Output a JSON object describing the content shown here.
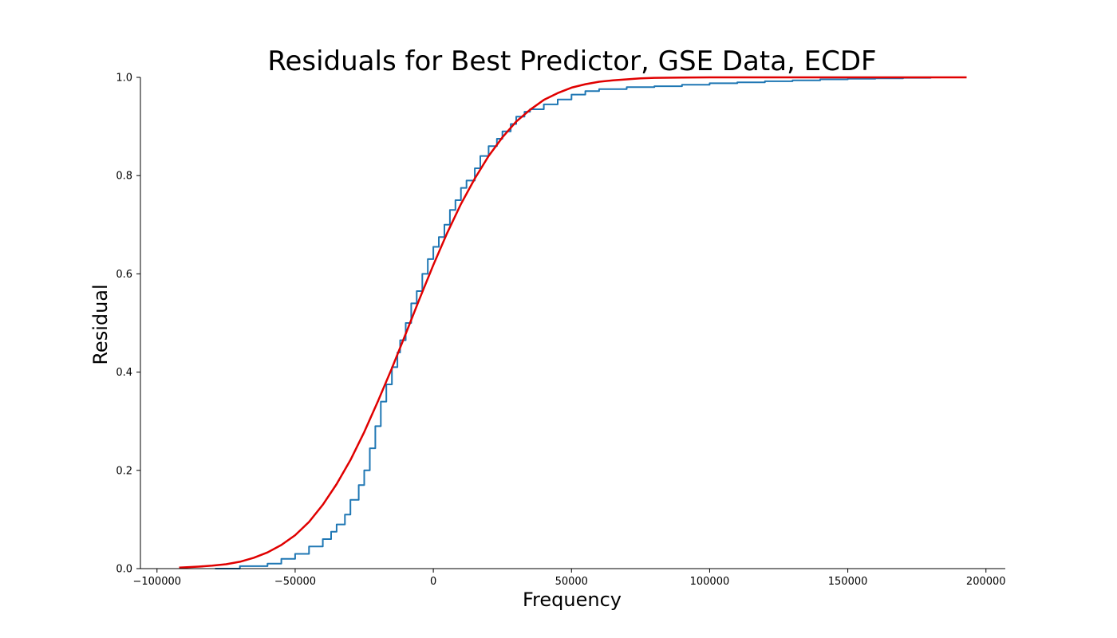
{
  "chart_data": {
    "type": "line",
    "title": "Residuals for Best Predictor, GSE Data, ECDF",
    "xlabel": "Frequency",
    "ylabel": "Residual",
    "xlim": [
      -106000,
      207000
    ],
    "ylim": [
      0,
      1
    ],
    "x_ticks": [
      -100000,
      -50000,
      0,
      50000,
      100000,
      150000,
      200000
    ],
    "x_tick_labels": [
      "−100000",
      "−50000",
      "0",
      "50000",
      "100000",
      "150000",
      "200000"
    ],
    "y_ticks": [
      0,
      0.2,
      0.4,
      0.6,
      0.8,
      1.0
    ],
    "y_tick_labels": [
      "0.0",
      "0.2",
      "0.4",
      "0.6",
      "0.8",
      "1.0"
    ],
    "grid": false,
    "legend": "none",
    "series": [
      {
        "style": "step",
        "color": "#1f77b4",
        "x": [
          -79000,
          -70000,
          -60000,
          -55000,
          -50000,
          -45000,
          -40000,
          -37000,
          -35000,
          -32000,
          -30000,
          -27000,
          -25000,
          -23000,
          -21000,
          -19000,
          -17000,
          -15000,
          -13000,
          -12000,
          -10000,
          -8000,
          -6000,
          -4000,
          -2000,
          0,
          2000,
          4000,
          6000,
          8000,
          10000,
          12000,
          15000,
          17000,
          20000,
          23000,
          25000,
          28000,
          30000,
          33000,
          35000,
          40000,
          45000,
          50000,
          55000,
          60000,
          70000,
          80000,
          90000,
          100000,
          110000,
          120000,
          130000,
          140000,
          150000,
          160000,
          170000,
          180000
        ],
        "y": [
          0.0,
          0.005,
          0.01,
          0.02,
          0.03,
          0.045,
          0.06,
          0.075,
          0.09,
          0.11,
          0.14,
          0.17,
          0.2,
          0.245,
          0.29,
          0.34,
          0.375,
          0.41,
          0.44,
          0.465,
          0.5,
          0.54,
          0.565,
          0.6,
          0.63,
          0.655,
          0.675,
          0.7,
          0.73,
          0.75,
          0.775,
          0.79,
          0.815,
          0.84,
          0.86,
          0.875,
          0.89,
          0.905,
          0.92,
          0.93,
          0.935,
          0.945,
          0.955,
          0.965,
          0.972,
          0.976,
          0.98,
          0.982,
          0.985,
          0.988,
          0.99,
          0.992,
          0.994,
          0.996,
          0.997,
          0.998,
          0.999,
          1.0
        ]
      },
      {
        "style": "line",
        "color": "#e00000",
        "x": [
          -92000,
          -85000,
          -80000,
          -75000,
          -70000,
          -65000,
          -60000,
          -55000,
          -50000,
          -45000,
          -40000,
          -35000,
          -30000,
          -25000,
          -20000,
          -15000,
          -10000,
          -5000,
          0,
          5000,
          10000,
          15000,
          20000,
          25000,
          30000,
          35000,
          40000,
          45000,
          50000,
          55000,
          60000,
          65000,
          70000,
          75000,
          80000,
          90000,
          100000,
          120000,
          140000,
          160000,
          180000,
          193000
        ],
        "y": [
          0.002,
          0.004,
          0.006,
          0.009,
          0.014,
          0.022,
          0.033,
          0.048,
          0.068,
          0.095,
          0.13,
          0.172,
          0.221,
          0.278,
          0.341,
          0.408,
          0.478,
          0.549,
          0.618,
          0.683,
          0.742,
          0.794,
          0.84,
          0.878,
          0.91,
          0.934,
          0.954,
          0.968,
          0.979,
          0.986,
          0.991,
          0.994,
          0.996,
          0.998,
          0.999,
          0.9995,
          1.0,
          1.0,
          1.0,
          1.0,
          1.0,
          1.0
        ]
      }
    ]
  }
}
